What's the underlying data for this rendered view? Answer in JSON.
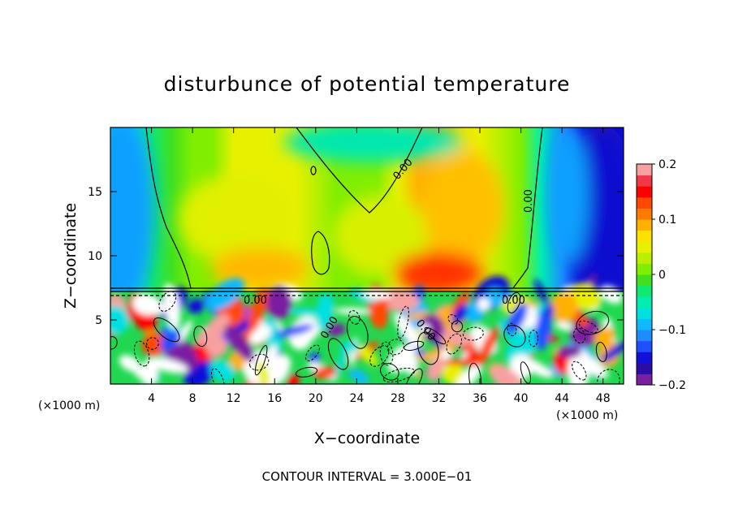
{
  "chart_data": {
    "type": "heatmap",
    "title": "disturbunce of potential temperature",
    "xlabel": "X−coordinate",
    "ylabel": "Z−coordinate",
    "x_unit": "(×1000 m)",
    "z_unit": "(×1000 m)",
    "footer": "CONTOUR INTERVAL = 3.000E−01",
    "xlim": [
      0,
      50
    ],
    "ylim": [
      0,
      20
    ],
    "x_ticks": [
      4,
      8,
      12,
      16,
      20,
      24,
      28,
      32,
      36,
      40,
      44,
      48
    ],
    "x_tick_labels": [
      "4",
      "8",
      "12",
      "16",
      "20",
      "24",
      "28",
      "32",
      "36",
      "40",
      "44",
      "48"
    ],
    "y_ticks": [
      5,
      10,
      15
    ],
    "y_tick_labels": [
      "5",
      "10",
      "15"
    ],
    "colorbar": {
      "min": -0.2,
      "max": 0.2,
      "ticks": [
        -0.2,
        -0.1,
        0,
        0.1,
        0.2
      ],
      "tick_labels": [
        "−0.2",
        "−0.1",
        "0",
        "0.1",
        "0.2"
      ],
      "colors": [
        "#7b1fa2",
        "#2b0ca8",
        "#1010d8",
        "#1e50ff",
        "#1c8cff",
        "#10b8ff",
        "#00e0e0",
        "#00eeb0",
        "#10e870",
        "#40e020",
        "#80ee00",
        "#b8f000",
        "#e8f000",
        "#ffe000",
        "#ffb000",
        "#ff7a00",
        "#ff4800",
        "#ff0000",
        "#f03848",
        "#f8a0a0"
      ]
    },
    "contour_labels": [
      "0.00",
      "0.00",
      "0.00",
      "0.00",
      "0.00",
      "0.00"
    ],
    "field_columns": {
      "x": [
        0,
        2,
        4,
        6,
        8,
        10,
        12,
        14,
        16,
        18,
        20,
        22,
        24,
        26,
        28,
        30,
        32,
        34,
        36,
        38,
        40,
        42,
        44,
        46,
        48,
        50
      ],
      "upper_layer_values": [
        -0.1,
        -0.07,
        -0.03,
        -0.01,
        0.0,
        0.02,
        0.04,
        0.05,
        0.05,
        0.04,
        0.03,
        0.02,
        0.0,
        0.01,
        0.04,
        0.08,
        0.09,
        0.07,
        0.05,
        0.03,
        0.0,
        -0.06,
        -0.12,
        -0.16,
        -0.17,
        -0.15
      ]
    }
  }
}
